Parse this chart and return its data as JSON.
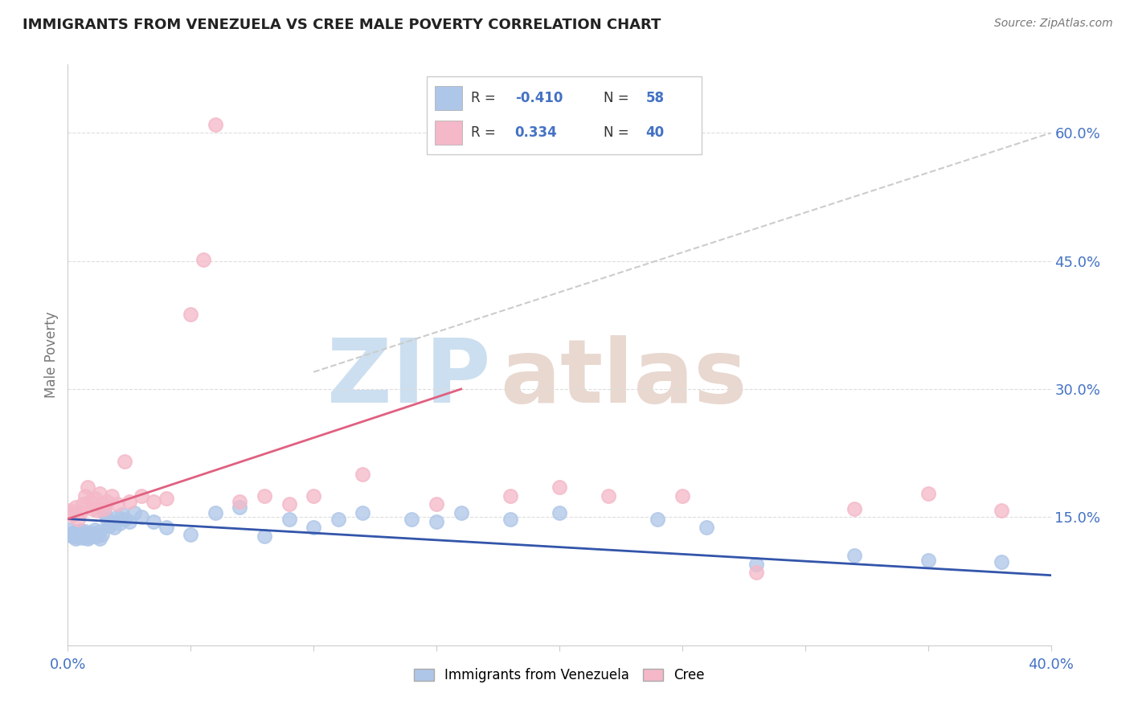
{
  "title": "IMMIGRANTS FROM VENEZUELA VS CREE MALE POVERTY CORRELATION CHART",
  "source": "Source: ZipAtlas.com",
  "ylabel": "Male Poverty",
  "right_yticks": [
    "60.0%",
    "45.0%",
    "30.0%",
    "15.0%"
  ],
  "right_ytick_vals": [
    0.6,
    0.45,
    0.3,
    0.15
  ],
  "xlim": [
    0.0,
    0.4
  ],
  "ylim": [
    0.0,
    0.68
  ],
  "blue_scatter_x": [
    0.0,
    0.001,
    0.002,
    0.002,
    0.003,
    0.003,
    0.004,
    0.004,
    0.005,
    0.005,
    0.006,
    0.006,
    0.007,
    0.007,
    0.008,
    0.008,
    0.009,
    0.009,
    0.01,
    0.01,
    0.011,
    0.012,
    0.013,
    0.013,
    0.014,
    0.015,
    0.016,
    0.017,
    0.018,
    0.019,
    0.02,
    0.021,
    0.022,
    0.023,
    0.025,
    0.027,
    0.03,
    0.035,
    0.04,
    0.05,
    0.06,
    0.07,
    0.08,
    0.09,
    0.1,
    0.11,
    0.12,
    0.14,
    0.15,
    0.16,
    0.18,
    0.2,
    0.24,
    0.26,
    0.28,
    0.32,
    0.35,
    0.38
  ],
  "blue_scatter_y": [
    0.13,
    0.135,
    0.128,
    0.132,
    0.125,
    0.133,
    0.127,
    0.131,
    0.129,
    0.134,
    0.126,
    0.13,
    0.128,
    0.133,
    0.125,
    0.131,
    0.129,
    0.127,
    0.132,
    0.13,
    0.135,
    0.128,
    0.133,
    0.125,
    0.13,
    0.155,
    0.148,
    0.14,
    0.145,
    0.138,
    0.15,
    0.143,
    0.153,
    0.148,
    0.145,
    0.155,
    0.15,
    0.145,
    0.138,
    0.13,
    0.155,
    0.162,
    0.128,
    0.148,
    0.138,
    0.148,
    0.155,
    0.148,
    0.145,
    0.155,
    0.148,
    0.155,
    0.148,
    0.138,
    0.095,
    0.105,
    0.1,
    0.098
  ],
  "pink_scatter_x": [
    0.001,
    0.002,
    0.003,
    0.004,
    0.005,
    0.006,
    0.007,
    0.008,
    0.009,
    0.01,
    0.011,
    0.012,
    0.013,
    0.014,
    0.015,
    0.016,
    0.018,
    0.02,
    0.023,
    0.025,
    0.03,
    0.035,
    0.04,
    0.05,
    0.055,
    0.06,
    0.07,
    0.08,
    0.09,
    0.1,
    0.12,
    0.15,
    0.18,
    0.2,
    0.22,
    0.25,
    0.28,
    0.32,
    0.35,
    0.38
  ],
  "pink_scatter_y": [
    0.158,
    0.152,
    0.162,
    0.148,
    0.155,
    0.165,
    0.175,
    0.185,
    0.168,
    0.16,
    0.172,
    0.158,
    0.178,
    0.165,
    0.16,
    0.168,
    0.175,
    0.165,
    0.215,
    0.168,
    0.175,
    0.168,
    0.172,
    0.388,
    0.452,
    0.61,
    0.168,
    0.175,
    0.165,
    0.175,
    0.2,
    0.165,
    0.175,
    0.185,
    0.175,
    0.175,
    0.085,
    0.16,
    0.178,
    0.158
  ],
  "blue_line_x": [
    0.0,
    0.4
  ],
  "blue_line_y": [
    0.148,
    0.082
  ],
  "pink_line_x": [
    0.0,
    0.16
  ],
  "pink_line_y": [
    0.148,
    0.3
  ],
  "gray_line_x": [
    0.1,
    0.4
  ],
  "gray_line_y": [
    0.32,
    0.6
  ],
  "blue_dot_color": "#aec6e8",
  "blue_line_color": "#3355aa",
  "pink_dot_color": "#f4b8c8",
  "pink_line_color": "#e06080",
  "gray_line_color": "#cccccc",
  "grid_color": "#dddddd",
  "right_axis_color": "#4472c4",
  "axis_tick_color": "#4472c4",
  "title_color": "#222222",
  "source_color": "#777777",
  "bg_color": "#ffffff",
  "watermark_zip_color": "#ccdff0",
  "watermark_atlas_color": "#e8d8d0",
  "legend_blue_rect": "#aec6e8",
  "legend_pink_rect": "#f4b8c8",
  "legend_text_r_color": "#333333",
  "legend_text_val_color": "#4472c4"
}
